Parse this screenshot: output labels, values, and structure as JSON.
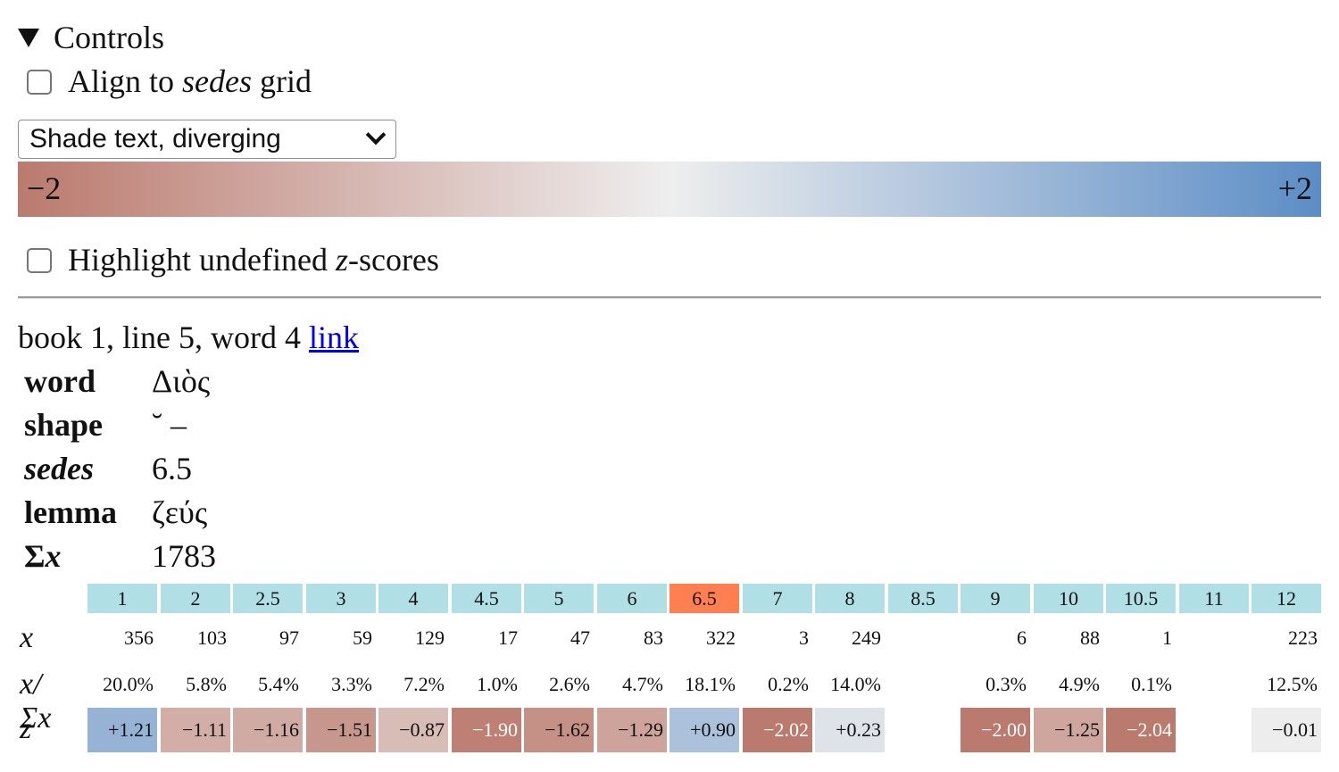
{
  "controls": {
    "summary": "Controls",
    "align_pre": "Align to ",
    "align_em": "sedes",
    "align_post": " grid",
    "align_checked": false,
    "select_value": "Shade text, diverging",
    "scale_min": "−2",
    "scale_max": "+2",
    "scale_colors": {
      "negative": "#bb7a6e",
      "neutral": "#eeeeee",
      "positive": "#5c8dc6"
    },
    "highlight_pre": "Highlight undefined ",
    "highlight_em": "z",
    "highlight_post": "-scores",
    "highlight_checked": false
  },
  "location": {
    "text": "book 1, line 5, word 4",
    "link": "link"
  },
  "info": [
    {
      "key": "word",
      "value": "Διὸς"
    },
    {
      "key": "shape",
      "value": "˘ –"
    },
    {
      "key": "sedes",
      "value": "6.5"
    },
    {
      "key": "lemma",
      "value": "ζεύς"
    },
    {
      "key": "Σx",
      "value": "1783"
    }
  ],
  "distribution": {
    "row_labels": {
      "x": "x",
      "pct": "x/Σx",
      "z": "z"
    },
    "active_sedes": "6.5",
    "columns": [
      {
        "sedes": "1",
        "x": "356",
        "pct": "20.0%",
        "z": "+1.21",
        "zval": 1.21
      },
      {
        "sedes": "2",
        "x": "103",
        "pct": "5.8%",
        "z": "−1.11",
        "zval": -1.11
      },
      {
        "sedes": "2.5",
        "x": "97",
        "pct": "5.4%",
        "z": "−1.16",
        "zval": -1.16
      },
      {
        "sedes": "3",
        "x": "59",
        "pct": "3.3%",
        "z": "−1.51",
        "zval": -1.51
      },
      {
        "sedes": "4",
        "x": "129",
        "pct": "7.2%",
        "z": "−0.87",
        "zval": -0.87
      },
      {
        "sedes": "4.5",
        "x": "17",
        "pct": "1.0%",
        "z": "−1.90",
        "zval": -1.9
      },
      {
        "sedes": "5",
        "x": "47",
        "pct": "2.6%",
        "z": "−1.62",
        "zval": -1.62
      },
      {
        "sedes": "6",
        "x": "83",
        "pct": "4.7%",
        "z": "−1.29",
        "zval": -1.29
      },
      {
        "sedes": "6.5",
        "x": "322",
        "pct": "18.1%",
        "z": "+0.90",
        "zval": 0.9
      },
      {
        "sedes": "7",
        "x": "3",
        "pct": "0.2%",
        "z": "−2.02",
        "zval": -2.02
      },
      {
        "sedes": "8",
        "x": "249",
        "pct": "14.0%",
        "z": "+0.23",
        "zval": 0.23
      },
      {
        "sedes": "8.5",
        "x": "",
        "pct": "",
        "z": "",
        "zval": null
      },
      {
        "sedes": "9",
        "x": "6",
        "pct": "0.3%",
        "z": "−2.00",
        "zval": -2.0
      },
      {
        "sedes": "10",
        "x": "88",
        "pct": "4.9%",
        "z": "−1.25",
        "zval": -1.25
      },
      {
        "sedes": "10.5",
        "x": "1",
        "pct": "0.1%",
        "z": "−2.04",
        "zval": -2.04
      },
      {
        "sedes": "11",
        "x": "",
        "pct": "",
        "z": "",
        "zval": null
      },
      {
        "sedes": "12",
        "x": "223",
        "pct": "12.5%",
        "z": "−0.01",
        "zval": -0.01
      }
    ]
  }
}
